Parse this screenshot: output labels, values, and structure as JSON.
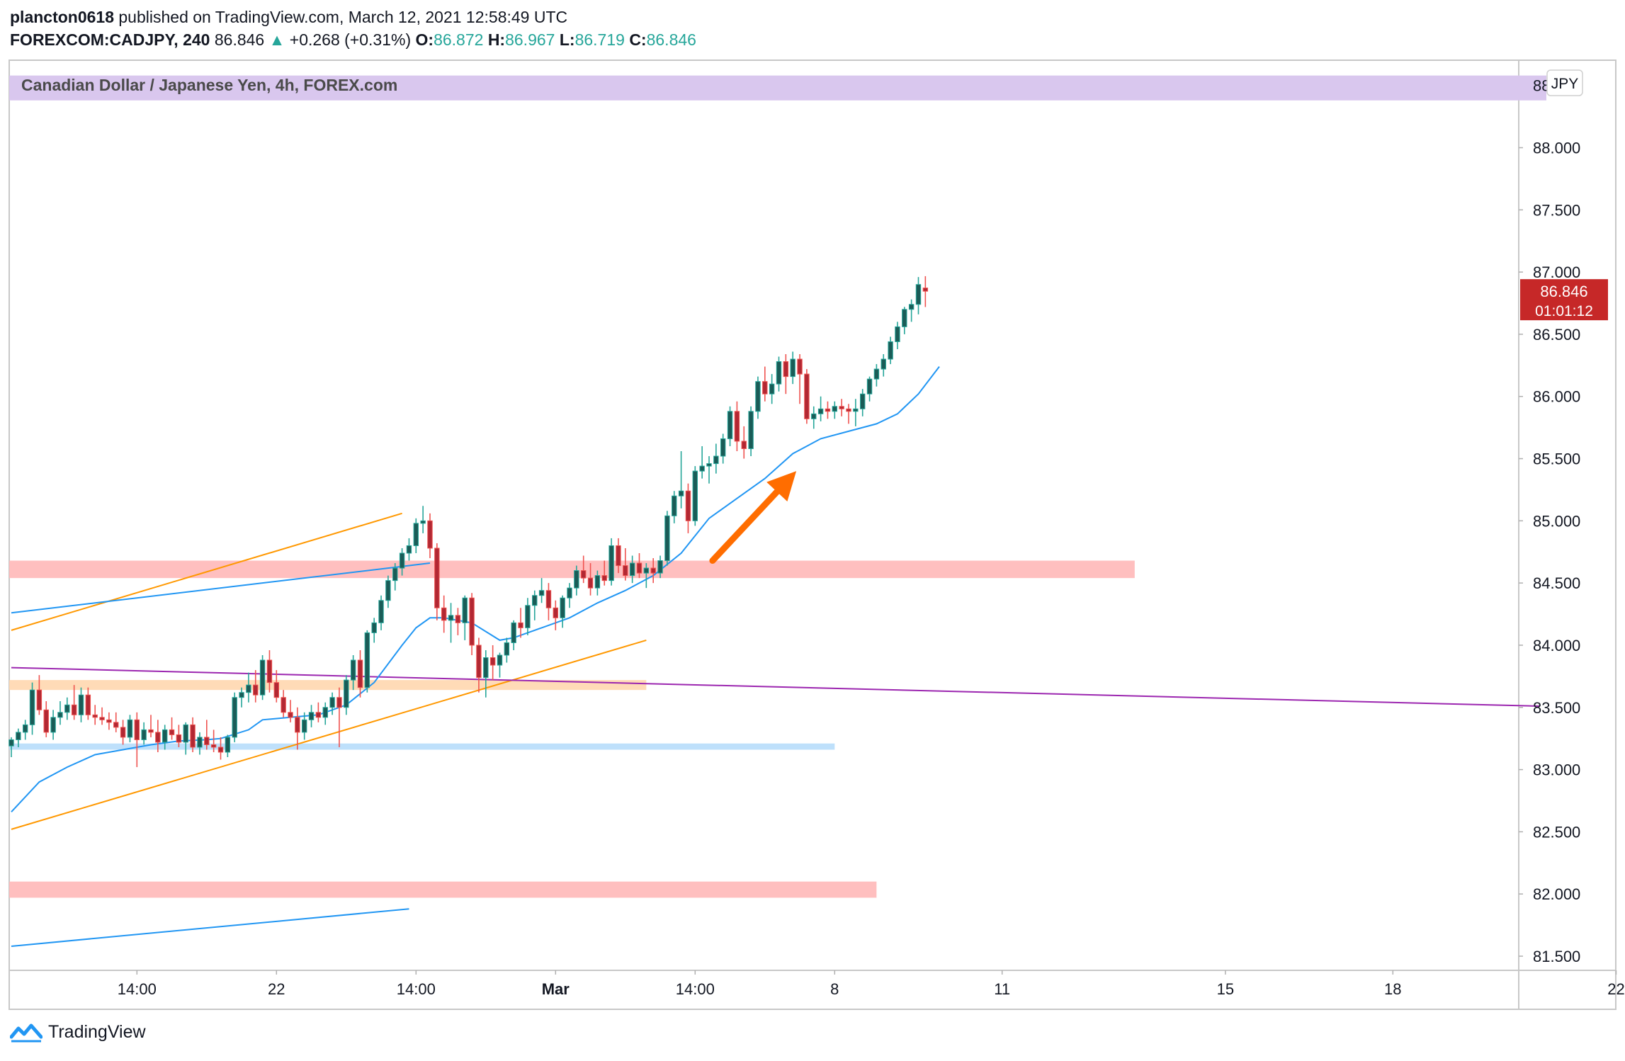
{
  "header": {
    "user": "plancton0618",
    "published": " published on TradingView.com, March 12, 2021 12:58:49 UTC",
    "symbol": "FOREXCOM:CADJPY, 240",
    "last": "86.846",
    "change": "+0.268 (+0.31%)",
    "o_label": "O:",
    "o": "86.872",
    "h_label": "H:",
    "h": "86.967",
    "l_label": "L:",
    "l": "86.719",
    "c_label": "C:",
    "c": "86.846"
  },
  "chart_title": "Canadian Dollar / Japanese Yen, 4h, FOREX.com",
  "currency_badge": "JPY",
  "price_tag": {
    "price": "86.846",
    "countdown": "01:01:12"
  },
  "footer": {
    "brand": "TradingView"
  },
  "colors": {
    "up": "#26a69a",
    "down": "#ef5350",
    "candle_up_body": "#1a5c57",
    "candle_down_body": "#b22833",
    "ema": "#2196f3",
    "channel": "#ff9800",
    "purple_line": "#9c27b0",
    "arrow": "#ff6d00",
    "price_tag": "#c62828",
    "zone_red": "#ffbcbc",
    "zone_orange": "#ffd9b3",
    "zone_blue": "#bbdefb",
    "zone_purple": "#d9c7ee"
  },
  "chart_data": {
    "type": "candlestick",
    "title": "Canadian Dollar / Japanese Yen, 4h, FOREX.com",
    "y_ticks": [
      "81.500",
      "82.000",
      "82.500",
      "83.000",
      "83.500",
      "84.000",
      "84.500",
      "85.000",
      "85.500",
      "86.000",
      "86.500",
      "87.000",
      "87.500",
      "88.000"
    ],
    "y_top_partial_label": "88",
    "x_ticks": [
      {
        "label": "14:00",
        "bar": 18
      },
      {
        "label": "22",
        "bar": 38
      },
      {
        "label": "14:00",
        "bar": 58
      },
      {
        "label": "Mar",
        "bar": 78,
        "bold": true
      },
      {
        "label": "14:00",
        "bar": 98
      },
      {
        "label": "8",
        "bar": 118
      },
      {
        "label": "11",
        "bar": 142
      },
      {
        "label": "15",
        "bar": 174
      },
      {
        "label": "18",
        "bar": 198
      },
      {
        "label": "22",
        "bar": 230
      }
    ],
    "ylim": [
      81.4,
      88.6
    ],
    "candles": [
      [
        83.19,
        83.26,
        83.1,
        83.24
      ],
      [
        83.24,
        83.33,
        83.18,
        83.3
      ],
      [
        83.3,
        83.4,
        83.24,
        83.36
      ],
      [
        83.36,
        83.7,
        83.28,
        83.64
      ],
      [
        83.64,
        83.76,
        83.44,
        83.48
      ],
      [
        83.48,
        83.55,
        83.26,
        83.3
      ],
      [
        83.3,
        83.48,
        83.24,
        83.42
      ],
      [
        83.42,
        83.55,
        83.36,
        83.46
      ],
      [
        83.46,
        83.58,
        83.4,
        83.52
      ],
      [
        83.52,
        83.68,
        83.4,
        83.44
      ],
      [
        83.44,
        83.66,
        83.38,
        83.6
      ],
      [
        83.6,
        83.66,
        83.4,
        83.44
      ],
      [
        83.44,
        83.52,
        83.36,
        83.42
      ],
      [
        83.42,
        83.5,
        83.36,
        83.4
      ],
      [
        83.4,
        83.46,
        83.32,
        83.38
      ],
      [
        83.38,
        83.46,
        83.3,
        83.34
      ],
      [
        83.34,
        83.4,
        83.2,
        83.26
      ],
      [
        83.26,
        83.44,
        83.22,
        83.4
      ],
      [
        83.4,
        83.46,
        83.02,
        83.24
      ],
      [
        83.24,
        83.38,
        83.2,
        83.32
      ],
      [
        83.32,
        83.44,
        83.26,
        83.3
      ],
      [
        83.3,
        83.4,
        83.14,
        83.22
      ],
      [
        83.22,
        83.36,
        83.16,
        83.32
      ],
      [
        83.32,
        83.42,
        83.24,
        83.28
      ],
      [
        83.28,
        83.36,
        83.18,
        83.22
      ],
      [
        83.22,
        83.38,
        83.12,
        83.36
      ],
      [
        83.36,
        83.42,
        83.14,
        83.18
      ],
      [
        83.18,
        83.3,
        83.12,
        83.26
      ],
      [
        83.26,
        83.4,
        83.16,
        83.2
      ],
      [
        83.2,
        83.32,
        83.14,
        83.18
      ],
      [
        83.18,
        83.26,
        83.08,
        83.14
      ],
      [
        83.14,
        83.28,
        83.1,
        83.26
      ],
      [
        83.26,
        83.62,
        83.22,
        83.58
      ],
      [
        83.58,
        83.66,
        83.5,
        83.62
      ],
      [
        83.62,
        83.78,
        83.54,
        83.68
      ],
      [
        83.68,
        83.8,
        83.54,
        83.6
      ],
      [
        83.6,
        83.92,
        83.56,
        83.88
      ],
      [
        83.88,
        83.96,
        83.62,
        83.7
      ],
      [
        83.7,
        83.8,
        83.54,
        83.58
      ],
      [
        83.58,
        83.64,
        83.42,
        83.46
      ],
      [
        83.46,
        83.56,
        83.38,
        83.42
      ],
      [
        83.42,
        83.5,
        83.16,
        83.3
      ],
      [
        83.3,
        83.46,
        83.24,
        83.4
      ],
      [
        83.4,
        83.52,
        83.34,
        83.46
      ],
      [
        83.46,
        83.54,
        83.38,
        83.42
      ],
      [
        83.42,
        83.54,
        83.36,
        83.5
      ],
      [
        83.5,
        83.62,
        83.44,
        83.58
      ],
      [
        83.58,
        83.66,
        83.18,
        83.5
      ],
      [
        83.5,
        83.76,
        83.44,
        83.72
      ],
      [
        83.72,
        83.92,
        83.64,
        83.88
      ],
      [
        83.88,
        83.96,
        83.58,
        83.66
      ],
      [
        83.66,
        84.12,
        83.62,
        84.1
      ],
      [
        84.1,
        84.22,
        84.02,
        84.18
      ],
      [
        84.18,
        84.4,
        84.12,
        84.36
      ],
      [
        84.36,
        84.56,
        84.3,
        84.52
      ],
      [
        84.52,
        84.66,
        84.44,
        84.62
      ],
      [
        84.62,
        84.78,
        84.56,
        84.74
      ],
      [
        84.74,
        84.86,
        84.68,
        84.8
      ],
      [
        84.8,
        85.02,
        84.74,
        84.98
      ],
      [
        84.98,
        85.12,
        84.9,
        85.0
      ],
      [
        85.0,
        85.06,
        84.7,
        84.78
      ],
      [
        84.78,
        84.82,
        84.2,
        84.3
      ],
      [
        84.3,
        84.4,
        84.1,
        84.2
      ],
      [
        84.2,
        84.34,
        84.02,
        84.24
      ],
      [
        84.24,
        84.3,
        84.08,
        84.18
      ],
      [
        84.18,
        84.4,
        84.04,
        84.38
      ],
      [
        84.38,
        84.42,
        83.92,
        84.0
      ],
      [
        84.0,
        84.06,
        83.62,
        83.74
      ],
      [
        83.74,
        83.96,
        83.58,
        83.9
      ],
      [
        83.9,
        84.0,
        83.72,
        83.84
      ],
      [
        83.84,
        83.94,
        83.74,
        83.92
      ],
      [
        83.92,
        84.06,
        83.86,
        84.02
      ],
      [
        84.02,
        84.2,
        83.96,
        84.18
      ],
      [
        84.18,
        84.3,
        84.06,
        84.14
      ],
      [
        84.14,
        84.38,
        84.08,
        84.32
      ],
      [
        84.32,
        84.44,
        84.2,
        84.4
      ],
      [
        84.4,
        84.54,
        84.34,
        84.44
      ],
      [
        84.44,
        84.5,
        84.2,
        84.3
      ],
      [
        84.3,
        84.36,
        84.12,
        84.22
      ],
      [
        84.22,
        84.4,
        84.14,
        84.38
      ],
      [
        84.38,
        84.5,
        84.3,
        84.46
      ],
      [
        84.46,
        84.64,
        84.4,
        84.6
      ],
      [
        84.6,
        84.72,
        84.5,
        84.54
      ],
      [
        84.54,
        84.66,
        84.4,
        84.46
      ],
      [
        84.46,
        84.6,
        84.4,
        84.56
      ],
      [
        84.56,
        84.68,
        84.48,
        84.52
      ],
      [
        84.52,
        84.86,
        84.48,
        84.8
      ],
      [
        84.8,
        84.86,
        84.58,
        84.64
      ],
      [
        84.64,
        84.78,
        84.52,
        84.56
      ],
      [
        84.56,
        84.72,
        84.5,
        84.66
      ],
      [
        84.66,
        84.74,
        84.54,
        84.58
      ],
      [
        84.58,
        84.66,
        84.46,
        84.62
      ],
      [
        84.62,
        84.7,
        84.5,
        84.58
      ],
      [
        84.58,
        84.72,
        84.54,
        84.68
      ],
      [
        84.68,
        85.08,
        84.64,
        85.04
      ],
      [
        85.04,
        85.24,
        84.98,
        85.2
      ],
      [
        85.2,
        85.56,
        85.1,
        85.24
      ],
      [
        85.24,
        85.3,
        84.9,
        85.0
      ],
      [
        85.0,
        85.44,
        84.96,
        85.4
      ],
      [
        85.4,
        85.6,
        85.34,
        85.44
      ],
      [
        85.44,
        85.52,
        85.3,
        85.46
      ],
      [
        85.46,
        85.62,
        85.38,
        85.52
      ],
      [
        85.52,
        85.7,
        85.46,
        85.66
      ],
      [
        85.66,
        85.92,
        85.6,
        85.88
      ],
      [
        85.88,
        85.96,
        85.56,
        85.64
      ],
      [
        85.64,
        85.76,
        85.5,
        85.58
      ],
      [
        85.58,
        85.92,
        85.52,
        85.88
      ],
      [
        85.88,
        86.16,
        85.82,
        86.12
      ],
      [
        86.12,
        86.24,
        85.96,
        86.02
      ],
      [
        86.02,
        86.18,
        85.94,
        86.1
      ],
      [
        86.1,
        86.32,
        86.04,
        86.28
      ],
      [
        86.28,
        86.34,
        86.02,
        86.16
      ],
      [
        86.16,
        86.36,
        86.1,
        86.3
      ],
      [
        86.3,
        86.34,
        85.94,
        86.18
      ],
      [
        86.18,
        86.22,
        85.78,
        85.82
      ],
      [
        85.82,
        85.92,
        85.74,
        85.86
      ],
      [
        85.86,
        86.0,
        85.8,
        85.9
      ],
      [
        85.9,
        85.96,
        85.82,
        85.88
      ],
      [
        85.88,
        85.96,
        85.82,
        85.92
      ],
      [
        85.92,
        85.98,
        85.84,
        85.9
      ],
      [
        85.9,
        85.94,
        85.78,
        85.88
      ],
      [
        85.88,
        85.98,
        85.76,
        85.9
      ],
      [
        85.9,
        86.06,
        85.84,
        86.02
      ],
      [
        86.02,
        86.16,
        85.96,
        86.14
      ],
      [
        86.14,
        86.26,
        86.08,
        86.22
      ],
      [
        86.22,
        86.34,
        86.16,
        86.3
      ],
      [
        86.3,
        86.48,
        86.26,
        86.44
      ],
      [
        86.44,
        86.6,
        86.38,
        86.56
      ],
      [
        86.56,
        86.72,
        86.5,
        86.7
      ],
      [
        86.7,
        86.78,
        86.6,
        86.74
      ],
      [
        86.74,
        86.96,
        86.66,
        86.9
      ],
      [
        86.872,
        86.967,
        86.719,
        86.846
      ]
    ],
    "ema": [
      [
        0,
        82.66
      ],
      [
        4,
        82.9
      ],
      [
        8,
        83.02
      ],
      [
        12,
        83.12
      ],
      [
        16,
        83.16
      ],
      [
        20,
        83.2
      ],
      [
        24,
        83.23
      ],
      [
        28,
        83.24
      ],
      [
        30,
        83.25
      ],
      [
        34,
        83.32
      ],
      [
        36,
        83.4
      ],
      [
        40,
        83.42
      ],
      [
        44,
        83.44
      ],
      [
        48,
        83.52
      ],
      [
        52,
        83.7
      ],
      [
        56,
        84.0
      ],
      [
        58,
        84.14
      ],
      [
        60,
        84.22
      ],
      [
        62,
        84.22
      ],
      [
        66,
        84.18
      ],
      [
        70,
        84.04
      ],
      [
        72,
        84.06
      ],
      [
        76,
        84.14
      ],
      [
        80,
        84.22
      ],
      [
        84,
        84.34
      ],
      [
        88,
        84.44
      ],
      [
        92,
        84.56
      ],
      [
        96,
        84.74
      ],
      [
        100,
        85.02
      ],
      [
        104,
        85.18
      ],
      [
        108,
        85.34
      ],
      [
        112,
        85.54
      ],
      [
        116,
        85.66
      ],
      [
        120,
        85.72
      ],
      [
        124,
        85.78
      ],
      [
        127,
        85.86
      ],
      [
        130,
        86.02
      ],
      [
        133,
        86.24
      ]
    ],
    "channel_upper": [
      [
        0,
        84.12
      ],
      [
        56,
        85.06
      ]
    ],
    "channel_lower": [
      [
        0,
        82.52
      ],
      [
        91,
        84.04
      ]
    ],
    "blue_trendline": [
      [
        0,
        84.26
      ],
      [
        60,
        84.66
      ]
    ],
    "lower_blue_line": [
      [
        0,
        81.58
      ],
      [
        57,
        81.88
      ]
    ],
    "purple_line": [
      [
        0,
        83.82
      ],
      [
        219,
        83.51
      ]
    ],
    "zones": [
      {
        "color": "purple",
        "from_bar": 0,
        "to_bar": 220,
        "low": 88.38,
        "high": 88.58
      },
      {
        "color": "red",
        "from_bar": 0,
        "to_bar": 161,
        "low": 84.54,
        "high": 84.68
      },
      {
        "color": "orange",
        "from_bar": 0,
        "to_bar": 91,
        "low": 83.64,
        "high": 83.72
      },
      {
        "color": "blue",
        "from_bar": 0,
        "to_bar": 118,
        "low": 83.16,
        "high": 83.21
      },
      {
        "color": "red",
        "from_bar": 0,
        "to_bar": 124,
        "low": 81.97,
        "high": 82.1
      }
    ],
    "arrow": {
      "from": [
        100.5,
        84.68
      ],
      "to": [
        112.5,
        85.4
      ]
    }
  }
}
